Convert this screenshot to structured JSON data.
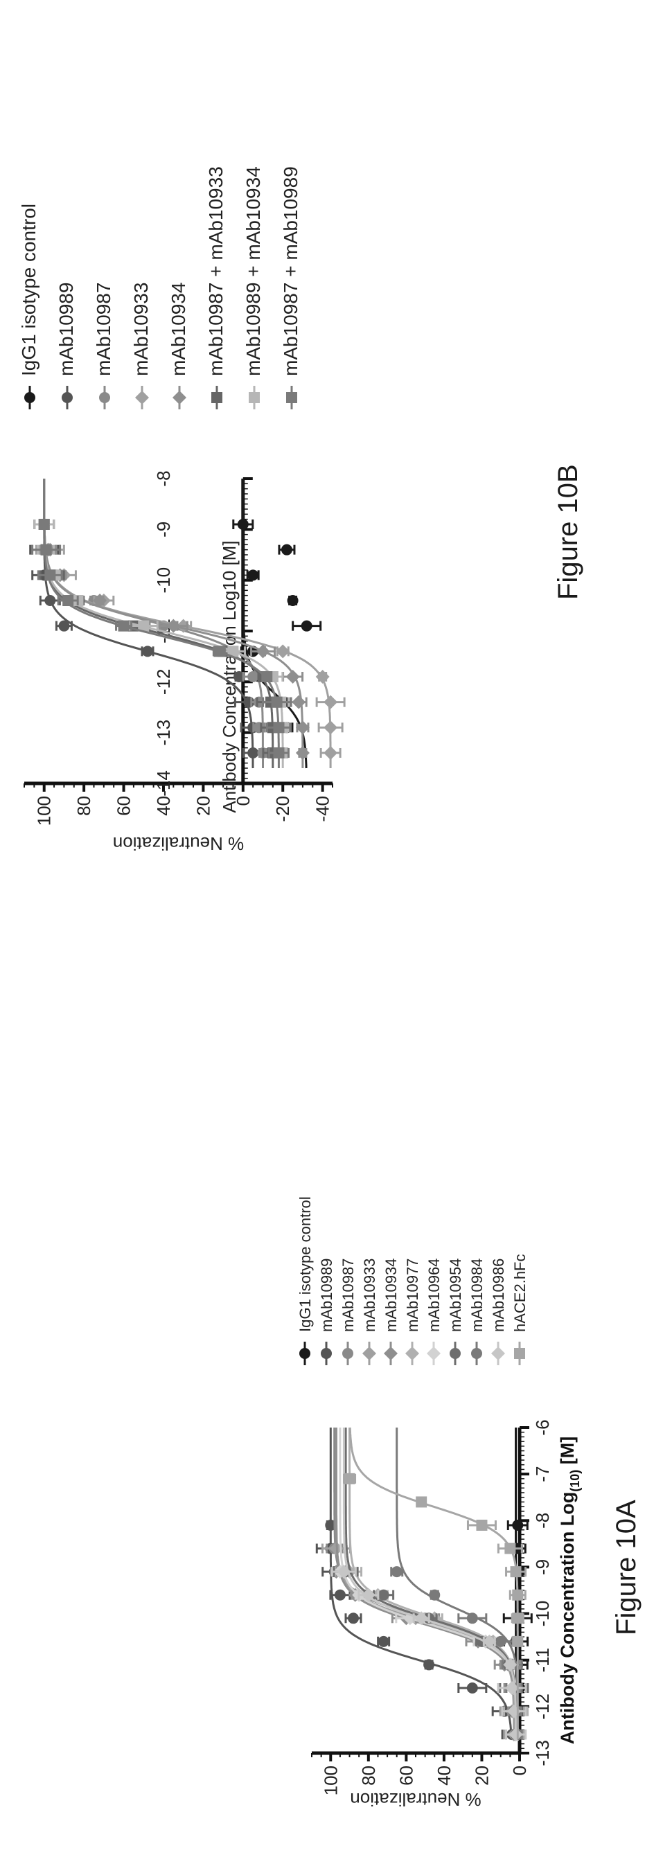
{
  "figures": [
    {
      "caption": "Figure 10A"
    },
    {
      "caption": "Figure 10B"
    }
  ],
  "chart_data": [
    {
      "type": "line",
      "xlabel_main": "Antibody Concentration Log",
      "xlabel_sub": "(10)",
      "xlabel_unit": " [M]",
      "ylabel": "% Neutralization",
      "xlim": [
        -13,
        -6
      ],
      "ylim": [
        0,
        110
      ],
      "xticks": [
        "-13",
        "-12",
        "-11",
        "-10",
        "-9",
        "-8",
        "-7",
        "-6"
      ],
      "yticks": [
        "0",
        "20",
        "40",
        "60",
        "80",
        "100"
      ],
      "legend_position": "right",
      "series": [
        {
          "name": "IgG1 isotype control",
          "color": "#1a1a1a",
          "marker": "circle",
          "x": [
            -12.6,
            -12.1,
            -11.6,
            -11.1,
            -10.6,
            -10.1,
            -9.6,
            -9.1,
            -8.6,
            -8.1
          ],
          "y": [
            2,
            1,
            0,
            1,
            2,
            1,
            1,
            0,
            1,
            1
          ]
        },
        {
          "name": "mAb10989",
          "color": "#555555",
          "marker": "circle",
          "x": [
            -12.6,
            -12.1,
            -11.6,
            -11.1,
            -10.6,
            -10.1,
            -9.6,
            -9.1,
            -8.6,
            -8.1
          ],
          "y": [
            4,
            8,
            25,
            48,
            72,
            88,
            95,
            98,
            100,
            100
          ]
        },
        {
          "name": "mAb10987",
          "color": "#8a8a8a",
          "marker": "circle",
          "x": [
            -12.6,
            -12.1,
            -11.6,
            -11.1,
            -10.6,
            -10.1,
            -9.6,
            -9.1,
            -8.6
          ],
          "y": [
            2,
            3,
            3,
            5,
            15,
            50,
            82,
            95,
            98
          ]
        },
        {
          "name": "mAb10933",
          "color": "#a0a0a0",
          "marker": "diamond",
          "x": [
            -12.6,
            -12.1,
            -11.6,
            -11.1,
            -10.6,
            -10.1,
            -9.6,
            -9.1,
            -8.6
          ],
          "y": [
            3,
            4,
            4,
            6,
            18,
            55,
            80,
            92,
            97
          ]
        },
        {
          "name": "mAb10934",
          "color": "#8f8f8f",
          "marker": "diamond",
          "x": [
            -12.6,
            -12.1,
            -11.6,
            -11.1,
            -10.6,
            -10.1,
            -9.6,
            -9.1
          ],
          "y": [
            2,
            3,
            4,
            8,
            22,
            60,
            87,
            97
          ]
        },
        {
          "name": "mAb10977",
          "color": "#b0b0b0",
          "marker": "diamond",
          "x": [
            -12.6,
            -12.1,
            -11.6,
            -11.1,
            -10.6,
            -10.1,
            -9.6,
            -9.1
          ],
          "y": [
            2,
            2,
            3,
            5,
            14,
            45,
            75,
            90
          ]
        },
        {
          "name": "mAb10964",
          "color": "#d2d2d2",
          "marker": "diamond",
          "x": [
            -12.6,
            -12.1,
            -11.6,
            -11.1,
            -10.6,
            -10.1,
            -9.6,
            -9.1
          ],
          "y": [
            1,
            2,
            3,
            4,
            18,
            58,
            85,
            95
          ]
        },
        {
          "name": "mAb10954",
          "color": "#6e6e6e",
          "marker": "circle",
          "x": [
            -12.6,
            -12.1,
            -11.6,
            -11.1,
            -10.6,
            -10.1,
            -9.6,
            -9.1
          ],
          "y": [
            2,
            3,
            3,
            6,
            20,
            48,
            72,
            92
          ]
        },
        {
          "name": "mAb10984",
          "color": "#7a7a7a",
          "marker": "circle",
          "x": [
            -12.6,
            -12.1,
            -11.6,
            -11.1,
            -10.6,
            -10.1,
            -9.6,
            -9.1
          ],
          "y": [
            1,
            2,
            3,
            4,
            10,
            25,
            45,
            65
          ]
        },
        {
          "name": "mAb10986",
          "color": "#c6c6c6",
          "marker": "diamond",
          "x": [
            -12.6,
            -12.1,
            -11.6,
            -11.1,
            -10.6,
            -10.1,
            -9.6,
            -9.1
          ],
          "y": [
            2,
            3,
            4,
            5,
            16,
            52,
            80,
            93
          ]
        },
        {
          "name": "hACE2.hFc",
          "color": "#a6a6a6",
          "marker": "square",
          "x": [
            -10.6,
            -10.1,
            -9.6,
            -9.1,
            -8.6,
            -8.1,
            -7.6,
            -7.1
          ],
          "y": [
            1,
            1,
            1,
            2,
            5,
            20,
            52,
            90
          ]
        }
      ]
    },
    {
      "type": "line",
      "xlabel": "Antibody Concentration Log10 [M]",
      "ylabel": "% Neutralization",
      "xlim": [
        -14,
        -8
      ],
      "ylim": [
        -45,
        110
      ],
      "xticks": [
        "-14",
        "-13",
        "-12",
        "-11",
        "-10",
        "-9",
        "-8"
      ],
      "yticks": [
        "-40",
        "-20",
        "0",
        "20",
        "40",
        "60",
        "80",
        "100"
      ],
      "legend_position": "right",
      "series": [
        {
          "name": "IgG1 isotype control",
          "color": "#1a1a1a",
          "marker": "circle",
          "x": [
            -13.4,
            -12.9,
            -12.4,
            -11.9,
            -11.4,
            -10.9,
            -10.4,
            -9.9,
            -9.4,
            -8.9
          ],
          "y": [
            -20,
            -22,
            -18,
            -12,
            -5,
            -32,
            -25,
            -5,
            -22,
            0
          ]
        },
        {
          "name": "mAb10989",
          "color": "#555555",
          "marker": "circle",
          "x": [
            -13.4,
            -12.9,
            -12.4,
            -11.9,
            -11.4,
            -10.9,
            -10.4,
            -9.9,
            -9.4,
            -8.9
          ],
          "y": [
            -5,
            -5,
            -3,
            2,
            48,
            90,
            97,
            100,
            100,
            100
          ]
        },
        {
          "name": "mAb10987",
          "color": "#8a8a8a",
          "marker": "circle",
          "x": [
            -13.4,
            -12.9,
            -12.4,
            -11.9,
            -11.4,
            -10.9,
            -10.4,
            -9.9,
            -9.4,
            -8.9
          ],
          "y": [
            -10,
            -8,
            -8,
            -5,
            5,
            40,
            75,
            92,
            98,
            100
          ]
        },
        {
          "name": "mAb10933",
          "color": "#a0a0a0",
          "marker": "diamond",
          "x": [
            -13.4,
            -12.9,
            -12.4,
            -11.9,
            -11.4,
            -10.9,
            -10.4,
            -9.9,
            -9.4,
            -8.9
          ],
          "y": [
            -44,
            -44,
            -44,
            -40,
            -20,
            30,
            70,
            90,
            97,
            100
          ]
        },
        {
          "name": "mAb10934",
          "color": "#8f8f8f",
          "marker": "diamond",
          "x": [
            -13.4,
            -12.9,
            -12.4,
            -11.9,
            -11.4,
            -10.9,
            -10.4,
            -9.9,
            -9.4,
            -8.9
          ],
          "y": [
            -30,
            -30,
            -28,
            -25,
            -10,
            35,
            72,
            92,
            98,
            100
          ]
        },
        {
          "name": "mAb10987 + mAb10933",
          "color": "#666666",
          "marker": "square",
          "x": [
            -13.4,
            -12.9,
            -12.4,
            -11.9,
            -11.4,
            -10.9,
            -10.4,
            -9.9,
            -9.4,
            -8.9
          ],
          "y": [
            -15,
            -15,
            -14,
            -10,
            10,
            55,
            85,
            96,
            99,
            100
          ]
        },
        {
          "name": "mAb10989 + mAb10934",
          "color": "#b6b6b6",
          "marker": "square",
          "x": [
            -13.4,
            -12.9,
            -12.4,
            -11.9,
            -11.4,
            -10.9,
            -10.4,
            -9.9,
            -9.4,
            -8.9
          ],
          "y": [
            -20,
            -20,
            -19,
            -15,
            5,
            50,
            83,
            95,
            99,
            100
          ]
        },
        {
          "name": "mAb10987 + mAb10989",
          "color": "#7a7a7a",
          "marker": "square",
          "x": [
            -13.4,
            -12.9,
            -12.4,
            -11.9,
            -11.4,
            -10.9,
            -10.4,
            -9.9,
            -9.4,
            -8.9
          ],
          "y": [
            -18,
            -18,
            -17,
            -12,
            12,
            60,
            88,
            97,
            99,
            100
          ]
        }
      ]
    }
  ]
}
